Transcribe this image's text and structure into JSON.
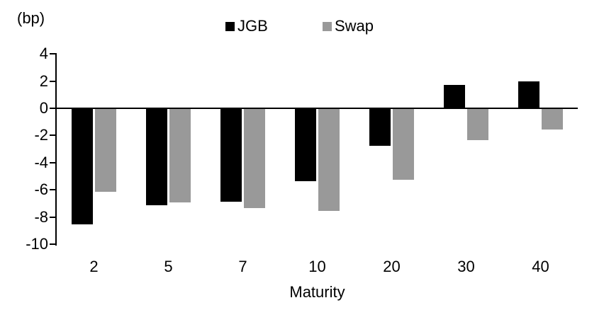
{
  "chart_data": {
    "type": "bar",
    "title": "",
    "unit_label": "(bp)",
    "xlabel": "Maturity",
    "ylabel": "",
    "categories": [
      "2",
      "5",
      "7",
      "10",
      "20",
      "30",
      "40"
    ],
    "series": [
      {
        "name": "JGB",
        "color": "#000000",
        "values": [
          -8.5,
          -7.1,
          -6.8,
          -5.3,
          -2.7,
          1.7,
          2.0
        ]
      },
      {
        "name": "Swap",
        "color": "#999999",
        "values": [
          -6.1,
          -6.9,
          -7.3,
          -7.5,
          -5.2,
          -2.3,
          -1.5
        ]
      }
    ],
    "ylim": [
      -10,
      4
    ],
    "yticks": [
      4,
      2,
      0,
      -2,
      -4,
      -6,
      -8,
      -10
    ],
    "legend_position": "top",
    "grid": "off",
    "axis_color": "#000000",
    "background_color": "#ffffff"
  }
}
